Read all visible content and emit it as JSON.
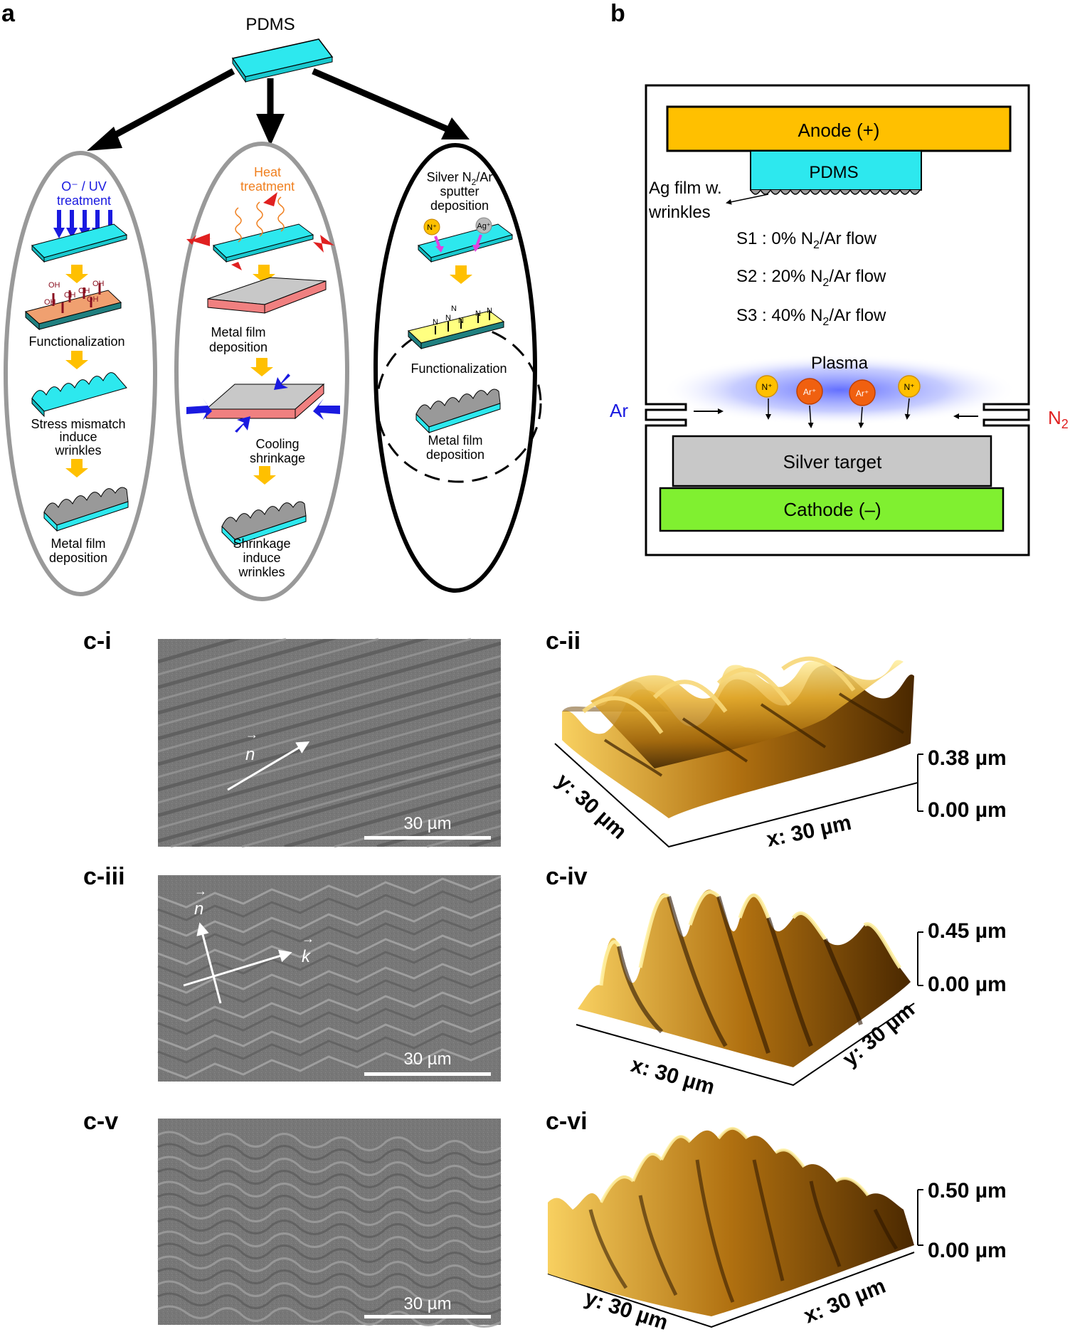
{
  "panel_a": {
    "label": "a",
    "substrate": "PDMS",
    "left": {
      "treatment_line1": "O⁻ / UV",
      "treatment_line2": "treatment",
      "oh_label": "OH",
      "step1": "Functionalization",
      "step2_line1": "Stress mismatch",
      "step2_line2": "induce",
      "step2_line3": "wrinkles",
      "step3_line1": "Metal film",
      "step3_line2": "deposition"
    },
    "middle": {
      "treatment_line1": "Heat",
      "treatment_line2": "treatment",
      "step1_line1": "Metal film",
      "step1_line2": "deposition",
      "step2_line1": "Cooling",
      "step2_line2": "shrinkage",
      "step3_line1": "Shrinkage",
      "step3_line2": "induce",
      "step3_line3": "wrinkles"
    },
    "right": {
      "title_line1_pre": "Silver N",
      "title_line1_sub": "2",
      "title_line1_post": "/Ar",
      "title_line2": "sputter",
      "title_line3": "deposition",
      "ion1": "N⁺",
      "ion2": "Ag⁺",
      "n_label": "N",
      "step1": "Functionalization",
      "step2_line1": "Metal film",
      "step2_line2": "deposition"
    }
  },
  "panel_b": {
    "label": "b",
    "anode": "Anode (+)",
    "pdms": "PDMS",
    "ag_film_line1": "Ag film w.",
    "ag_film_line2": "wrinkles",
    "s1_pre": "S1 :   0% N",
    "s2_pre": "S2 : 20% N",
    "s3_pre": "S3 : 40% N",
    "sub2": "2",
    "flow_post": "/Ar flow",
    "plasma": "Plasma",
    "n_ion": "N⁺",
    "ar_ion": "Ar⁺",
    "ar_inlet": "Ar",
    "n2_pre": "N",
    "n2_sub": "2",
    "target": "Silver target",
    "cathode": "Cathode (–)"
  },
  "panel_c": {
    "ci": {
      "label": "c-i",
      "scale": "30 µm",
      "vector_n": "n"
    },
    "cii": {
      "label": "c-ii",
      "z_top": "0.38 µm",
      "z_bottom": "0.00 µm",
      "x_axis": "x: 30 µm",
      "y_axis": "y: 30 µm"
    },
    "ciii": {
      "label": "c-iii",
      "scale": "30 µm",
      "vector_n": "n",
      "vector_k": "k"
    },
    "civ": {
      "label": "c-iv",
      "z_top": "0.45 µm",
      "z_bottom": "0.00 µm",
      "x_axis": "x: 30 µm",
      "y_axis": "y: 30 µm"
    },
    "cv": {
      "label": "c-v",
      "scale": "30 µm"
    },
    "cvi": {
      "label": "c-vi",
      "z_top": "0.50 µm",
      "z_bottom": "0.00 µm",
      "x_axis": "x: 30 µm",
      "y_axis": "y: 30 µm"
    }
  },
  "colors": {
    "cyan": "#2de8ee",
    "anode": "#ffc000",
    "cathode": "#80f030",
    "target": "#c8c8c8",
    "gold": "#c89018",
    "sem": "#7a7a7a"
  }
}
